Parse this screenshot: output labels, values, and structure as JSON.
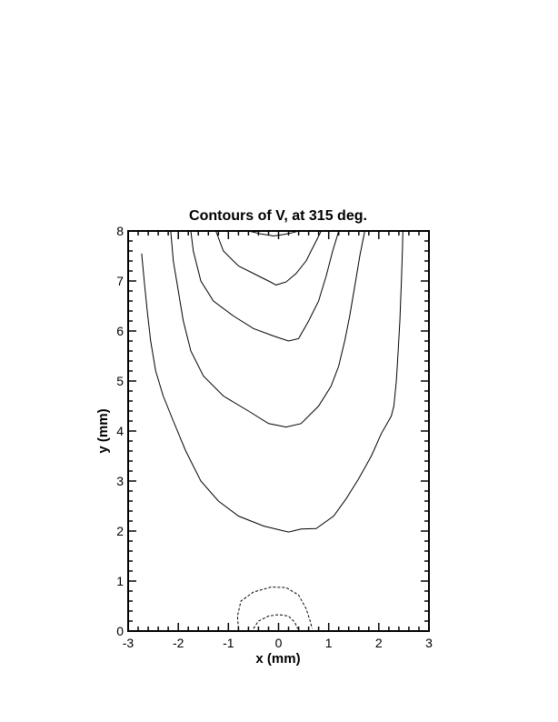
{
  "chart_data": {
    "type": "contour",
    "title": "Contours of V, at 315 deg.",
    "xlabel": "x (mm)",
    "ylabel": "y (mm)",
    "xlim": [
      -3,
      3
    ],
    "ylim": [
      0,
      8
    ],
    "xticks": [
      "-3",
      "-2",
      "-1",
      "0",
      "1",
      "2",
      "3"
    ],
    "yticks": [
      "0",
      "1",
      "2",
      "3",
      "4",
      "5",
      "6",
      "7",
      "8"
    ],
    "x_minor_step": 0.2,
    "y_minor_step": 0.2,
    "grid": false,
    "line_color": "#000000",
    "contours": [
      {
        "style": "solid",
        "points": [
          [
            -2.73,
            7.55
          ],
          [
            -2.68,
            7.0
          ],
          [
            -2.62,
            6.4
          ],
          [
            -2.55,
            5.8
          ],
          [
            -2.45,
            5.2
          ],
          [
            -2.3,
            4.7
          ],
          [
            -2.1,
            4.2
          ],
          [
            -1.85,
            3.6
          ],
          [
            -1.55,
            3.0
          ],
          [
            -1.2,
            2.6
          ],
          [
            -0.8,
            2.3
          ],
          [
            -0.3,
            2.1
          ],
          [
            0.2,
            1.98
          ],
          [
            0.45,
            2.04
          ],
          [
            0.75,
            2.05
          ],
          [
            1.1,
            2.3
          ],
          [
            1.35,
            2.65
          ],
          [
            1.6,
            3.05
          ],
          [
            1.85,
            3.5
          ],
          [
            2.05,
            3.95
          ],
          [
            2.25,
            4.3
          ],
          [
            2.3,
            4.5
          ],
          [
            2.35,
            5.0
          ],
          [
            2.38,
            5.5
          ],
          [
            2.42,
            6.2
          ],
          [
            2.45,
            7.0
          ],
          [
            2.47,
            7.6
          ],
          [
            2.48,
            8.0
          ]
        ]
      },
      {
        "style": "solid",
        "points": [
          [
            -2.15,
            8.0
          ],
          [
            -2.1,
            7.4
          ],
          [
            -2.0,
            6.8
          ],
          [
            -1.9,
            6.2
          ],
          [
            -1.75,
            5.6
          ],
          [
            -1.5,
            5.1
          ],
          [
            -1.1,
            4.7
          ],
          [
            -0.6,
            4.4
          ],
          [
            -0.2,
            4.15
          ],
          [
            0.15,
            4.08
          ],
          [
            0.45,
            4.15
          ],
          [
            0.8,
            4.5
          ],
          [
            1.05,
            4.9
          ],
          [
            1.2,
            5.3
          ],
          [
            1.32,
            5.8
          ],
          [
            1.42,
            6.3
          ],
          [
            1.52,
            6.9
          ],
          [
            1.62,
            7.5
          ],
          [
            1.72,
            8.0
          ]
        ]
      },
      {
        "style": "solid",
        "points": [
          [
            -1.75,
            8.0
          ],
          [
            -1.7,
            7.6
          ],
          [
            -1.55,
            7.0
          ],
          [
            -1.3,
            6.6
          ],
          [
            -0.9,
            6.3
          ],
          [
            -0.5,
            6.05
          ],
          [
            -0.1,
            5.9
          ],
          [
            0.2,
            5.8
          ],
          [
            0.4,
            5.85
          ],
          [
            0.6,
            6.2
          ],
          [
            0.8,
            6.6
          ],
          [
            0.95,
            7.1
          ],
          [
            1.08,
            7.6
          ],
          [
            1.2,
            8.0
          ]
        ]
      },
      {
        "style": "solid",
        "points": [
          [
            -1.25,
            8.0
          ],
          [
            -1.1,
            7.6
          ],
          [
            -0.8,
            7.3
          ],
          [
            -0.4,
            7.1
          ],
          [
            -0.2,
            7.0
          ],
          [
            -0.05,
            6.92
          ],
          [
            0.15,
            6.98
          ],
          [
            0.35,
            7.15
          ],
          [
            0.55,
            7.4
          ],
          [
            0.75,
            7.8
          ],
          [
            0.85,
            8.0
          ]
        ]
      },
      {
        "style": "solid",
        "points": [
          [
            -0.6,
            8.0
          ],
          [
            -0.35,
            7.94
          ],
          [
            -0.1,
            7.9
          ],
          [
            0.1,
            7.93
          ],
          [
            0.3,
            7.97
          ],
          [
            0.4,
            8.0
          ]
        ]
      },
      {
        "style": "dashed",
        "points": [
          [
            -0.8,
            0.05
          ],
          [
            -0.82,
            0.3
          ],
          [
            -0.75,
            0.6
          ],
          [
            -0.5,
            0.78
          ],
          [
            -0.15,
            0.88
          ],
          [
            0.15,
            0.87
          ],
          [
            0.4,
            0.72
          ],
          [
            0.55,
            0.45
          ],
          [
            0.63,
            0.2
          ],
          [
            0.67,
            0.05
          ]
        ]
      },
      {
        "style": "dashed",
        "points": [
          [
            -0.5,
            0.05
          ],
          [
            -0.4,
            0.2
          ],
          [
            -0.2,
            0.3
          ],
          [
            0.0,
            0.33
          ],
          [
            0.2,
            0.3
          ],
          [
            0.32,
            0.18
          ],
          [
            0.38,
            0.05
          ]
        ]
      }
    ]
  }
}
